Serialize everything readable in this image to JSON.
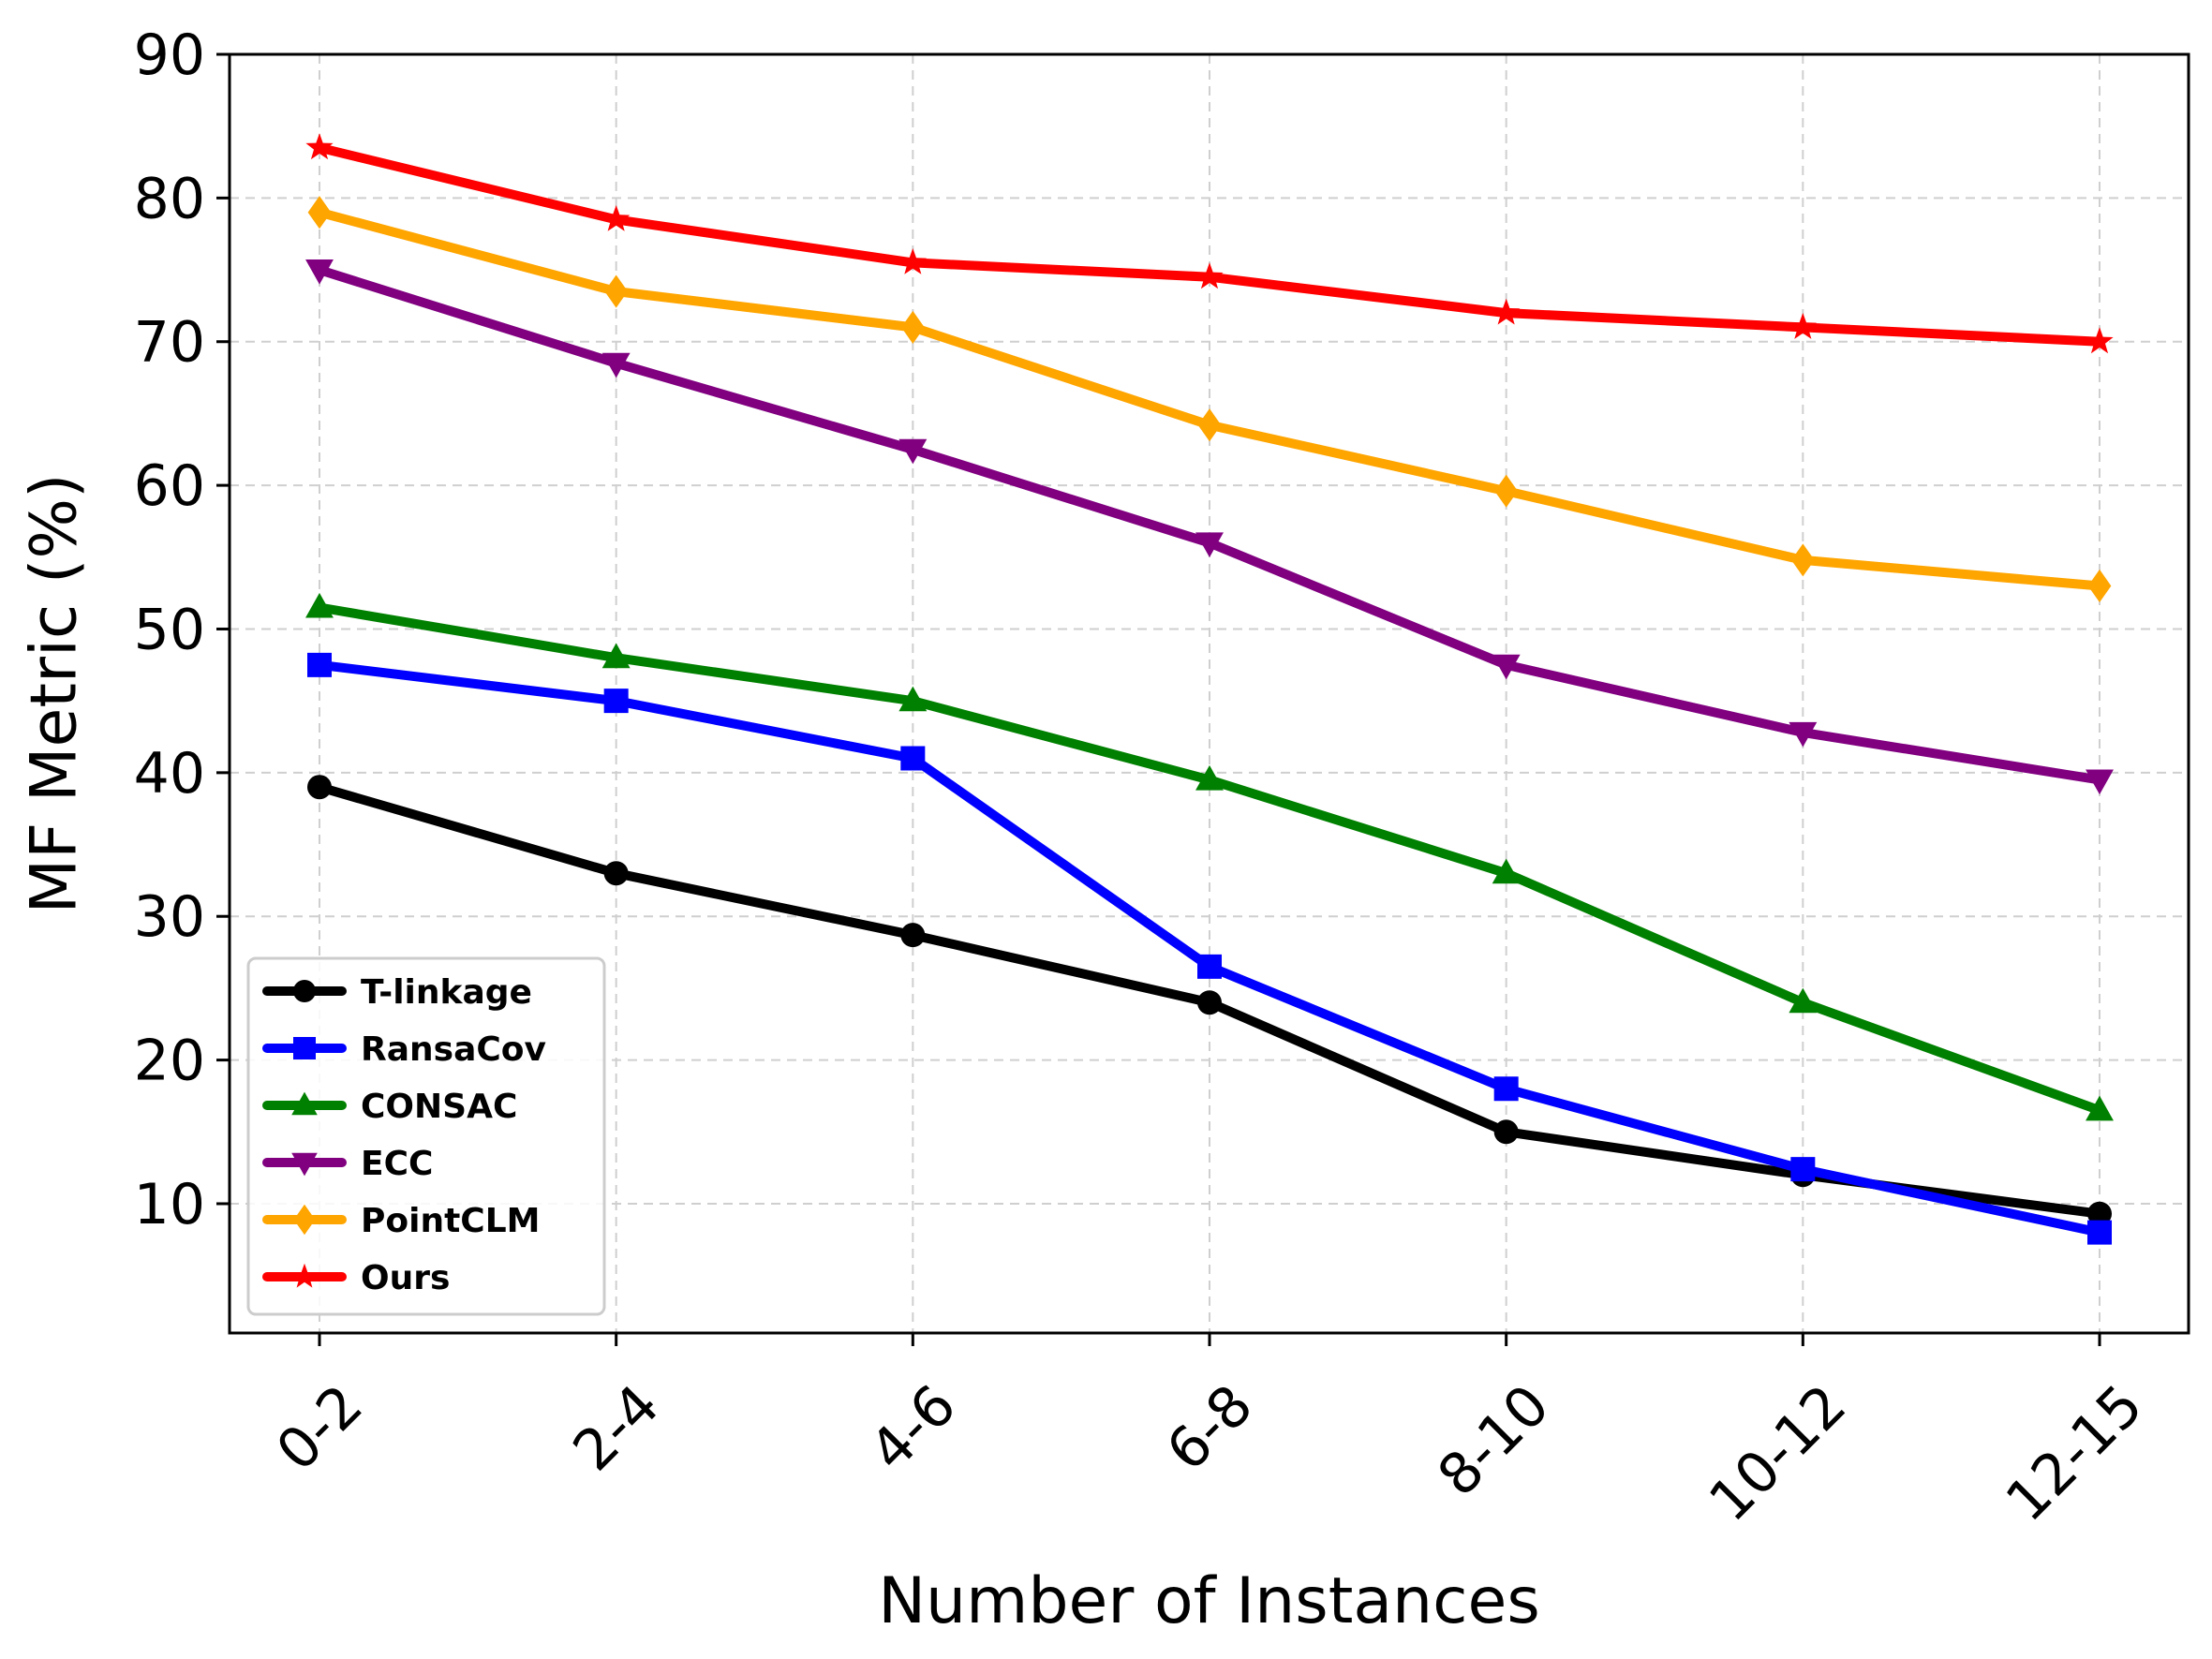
{
  "chart_data": {
    "type": "line",
    "title": "",
    "xlabel": "Number of Instances",
    "ylabel": "MF Metric (%)",
    "categories": [
      "0-2",
      "2-4",
      "4-6",
      "6-8",
      "8-10",
      "10-12",
      "12-15"
    ],
    "ylim": [
      1,
      90
    ],
    "yticks": [
      10,
      20,
      30,
      40,
      50,
      60,
      70,
      80,
      90
    ],
    "grid": true,
    "legend_position": "lower-left",
    "series": [
      {
        "name": "T-linkage",
        "color": "#000000",
        "marker": "circle",
        "values": [
          39,
          33,
          28.7,
          24,
          15,
          12,
          9.3
        ]
      },
      {
        "name": "RansaCov",
        "color": "#0000ff",
        "marker": "square",
        "values": [
          47.5,
          45,
          41,
          26.5,
          18,
          12.4,
          8
        ]
      },
      {
        "name": "CONSAC",
        "color": "#008000",
        "marker": "triangle-up",
        "values": [
          51.5,
          48,
          45,
          39.5,
          33,
          24,
          16.5
        ]
      },
      {
        "name": "ECC",
        "color": "#800080",
        "marker": "triangle-down",
        "values": [
          75,
          68.5,
          62.5,
          56,
          47.5,
          42.8,
          39.5
        ]
      },
      {
        "name": "PointCLM",
        "color": "#ffa500",
        "marker": "diamond",
        "values": [
          79,
          73.5,
          71,
          64.2,
          59.6,
          54.8,
          53
        ]
      },
      {
        "name": "Ours",
        "color": "#ff0000",
        "marker": "star",
        "values": [
          83.5,
          78.5,
          75.5,
          74.5,
          72,
          71,
          70
        ]
      }
    ]
  }
}
